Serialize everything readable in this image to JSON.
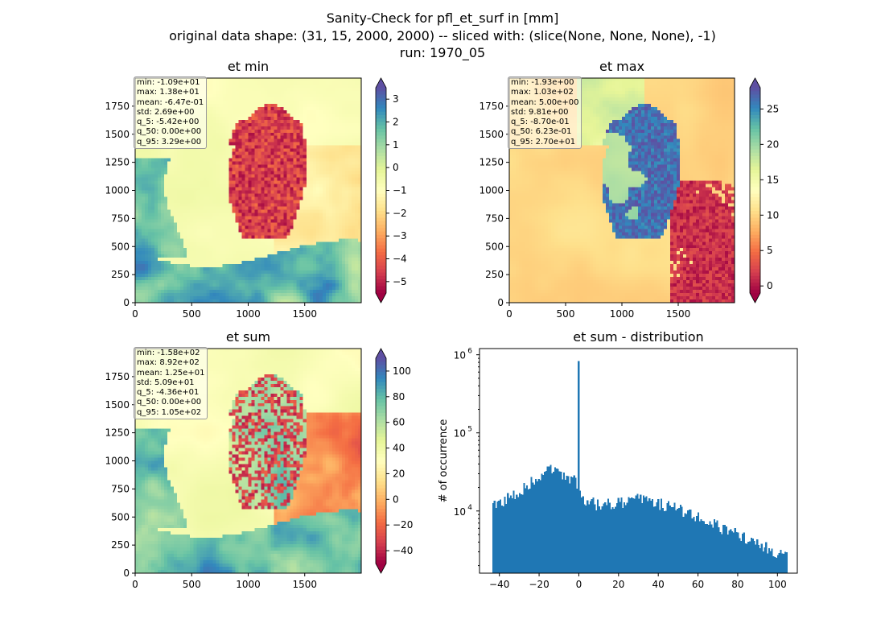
{
  "suptitle": [
    "Sanity-Check for pfl_et_surf in [mm]",
    "original data shape: (31, 15, 2000, 2000) -- sliced with: (slice(None, None, None), -1)",
    "run: 1970_05"
  ],
  "chart_data": [
    {
      "type": "heatmap",
      "title": "et min",
      "xlim": [
        0,
        2000
      ],
      "ylim": [
        0,
        2000
      ],
      "xticks": [
        0,
        500,
        1000,
        1500
      ],
      "yticks": [
        0,
        250,
        500,
        750,
        1000,
        1250,
        1500,
        1750
      ],
      "colormap": "Spectral",
      "colorbar": {
        "min": -5.5,
        "max": 3.5,
        "ticks": [
          -5,
          -4,
          -3,
          -2,
          -1,
          0,
          1,
          2,
          3
        ],
        "extend": "both"
      },
      "stats": [
        "min: -1.09e+01",
        "max: 1.38e+01",
        "mean: -6.47e-01",
        "std: 2.69e+00",
        "q_5: -5.42e+00",
        "q_50: 0.00e+00",
        "q_95: 3.29e+00"
      ]
    },
    {
      "type": "heatmap",
      "title": "et max",
      "xlim": [
        0,
        2000
      ],
      "ylim": [
        0,
        2000
      ],
      "xticks": [
        0,
        500,
        1000,
        1500
      ],
      "yticks": [
        0,
        250,
        500,
        750,
        1000,
        1250,
        1500,
        1750
      ],
      "colormap": "Spectral",
      "colorbar": {
        "min": -1,
        "max": 28,
        "ticks": [
          0,
          5,
          10,
          15,
          20,
          25
        ],
        "extend": "both"
      },
      "stats": [
        "min: -1.93e+00",
        "max: 1.03e+02",
        "mean: 5.00e+00",
        "std: 9.81e+00",
        "q_5: -8.70e-01",
        "q_50: 6.23e-01",
        "q_95: 2.70e+01"
      ]
    },
    {
      "type": "heatmap",
      "title": "et sum",
      "xlim": [
        0,
        2000
      ],
      "ylim": [
        0,
        2000
      ],
      "xticks": [
        0,
        500,
        1000,
        1500
      ],
      "yticks": [
        0,
        250,
        500,
        750,
        1000,
        1250,
        1500,
        1750
      ],
      "colormap": "Spectral",
      "colorbar": {
        "min": -50,
        "max": 110,
        "ticks": [
          -40,
          -20,
          0,
          20,
          40,
          60,
          80,
          100
        ],
        "extend": "both"
      },
      "stats": [
        "min: -1.58e+02",
        "max: 8.92e+02",
        "mean: 1.25e+01",
        "std: 5.09e+01",
        "q_5: -4.36e+01",
        "q_50: 0.00e+00",
        "q_95: 1.05e+02"
      ]
    },
    {
      "type": "bar",
      "title": "et sum - distribution",
      "ylabel": "# of occurrence",
      "xlabel": "",
      "yscale": "log",
      "xlim": [
        -50,
        110
      ],
      "ylim": [
        1600,
        1200000
      ],
      "xticks": [
        -40,
        -20,
        0,
        20,
        40,
        60,
        80,
        100
      ],
      "yticks": [
        10000,
        100000,
        1000000
      ],
      "ytick_labels": [
        "10^4",
        "10^5",
        "10^6"
      ],
      "color": "#1f77b4",
      "bin_range": [
        -43.6,
        105
      ],
      "bin_count": 200,
      "profile": [
        [
          -43.6,
          11000
        ],
        [
          -40,
          13000
        ],
        [
          -30,
          18000
        ],
        [
          -20,
          28000
        ],
        [
          -15,
          34000
        ],
        [
          -10,
          33000
        ],
        [
          -5,
          27000
        ],
        [
          -1,
          24000
        ],
        [
          1,
          15000
        ],
        [
          5,
          13500
        ],
        [
          10,
          12000
        ],
        [
          20,
          12500
        ],
        [
          25,
          13500
        ],
        [
          30,
          14500
        ],
        [
          35,
          13500
        ],
        [
          40,
          12500
        ],
        [
          50,
          10500
        ],
        [
          60,
          8500
        ],
        [
          70,
          6500
        ],
        [
          80,
          5000
        ],
        [
          90,
          4000
        ],
        [
          100,
          3000
        ],
        [
          105,
          2800
        ]
      ],
      "spike": {
        "x": 0,
        "count": 830000
      }
    }
  ],
  "colors": {
    "bar": "#1f77b4",
    "axes": "#000000",
    "stats_border": "#9a9a9a"
  }
}
